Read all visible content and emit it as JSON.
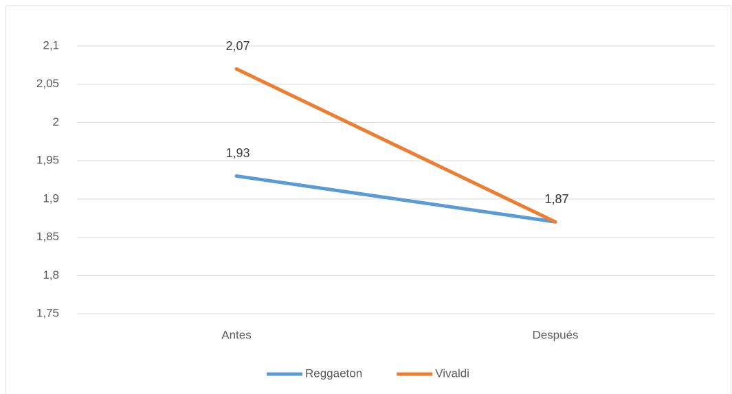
{
  "chart_data": {
    "type": "line",
    "categories": [
      "Antes",
      "Después"
    ],
    "series": [
      {
        "name": "Reggaeton",
        "color": "#5b9bd5",
        "values": [
          1.93,
          1.87
        ],
        "value_labels": [
          "1,93",
          "1,87"
        ]
      },
      {
        "name": "Vivaldi",
        "color": "#ed7d31",
        "values": [
          2.07,
          1.87
        ],
        "value_labels": [
          "2,07",
          "1,87"
        ]
      }
    ],
    "ylim": [
      1.75,
      2.1
    ],
    "yticks": [
      {
        "value": 1.75,
        "label": "1,75"
      },
      {
        "value": 1.8,
        "label": "1,8"
      },
      {
        "value": 1.85,
        "label": "1,85"
      },
      {
        "value": 1.9,
        "label": "1,9"
      },
      {
        "value": 1.95,
        "label": "1,95"
      },
      2,
      {
        "value": 2.05,
        "label": "2,05"
      },
      {
        "value": 2.1,
        "label": "2,1"
      }
    ],
    "grid": true,
    "legend": "bottom"
  }
}
